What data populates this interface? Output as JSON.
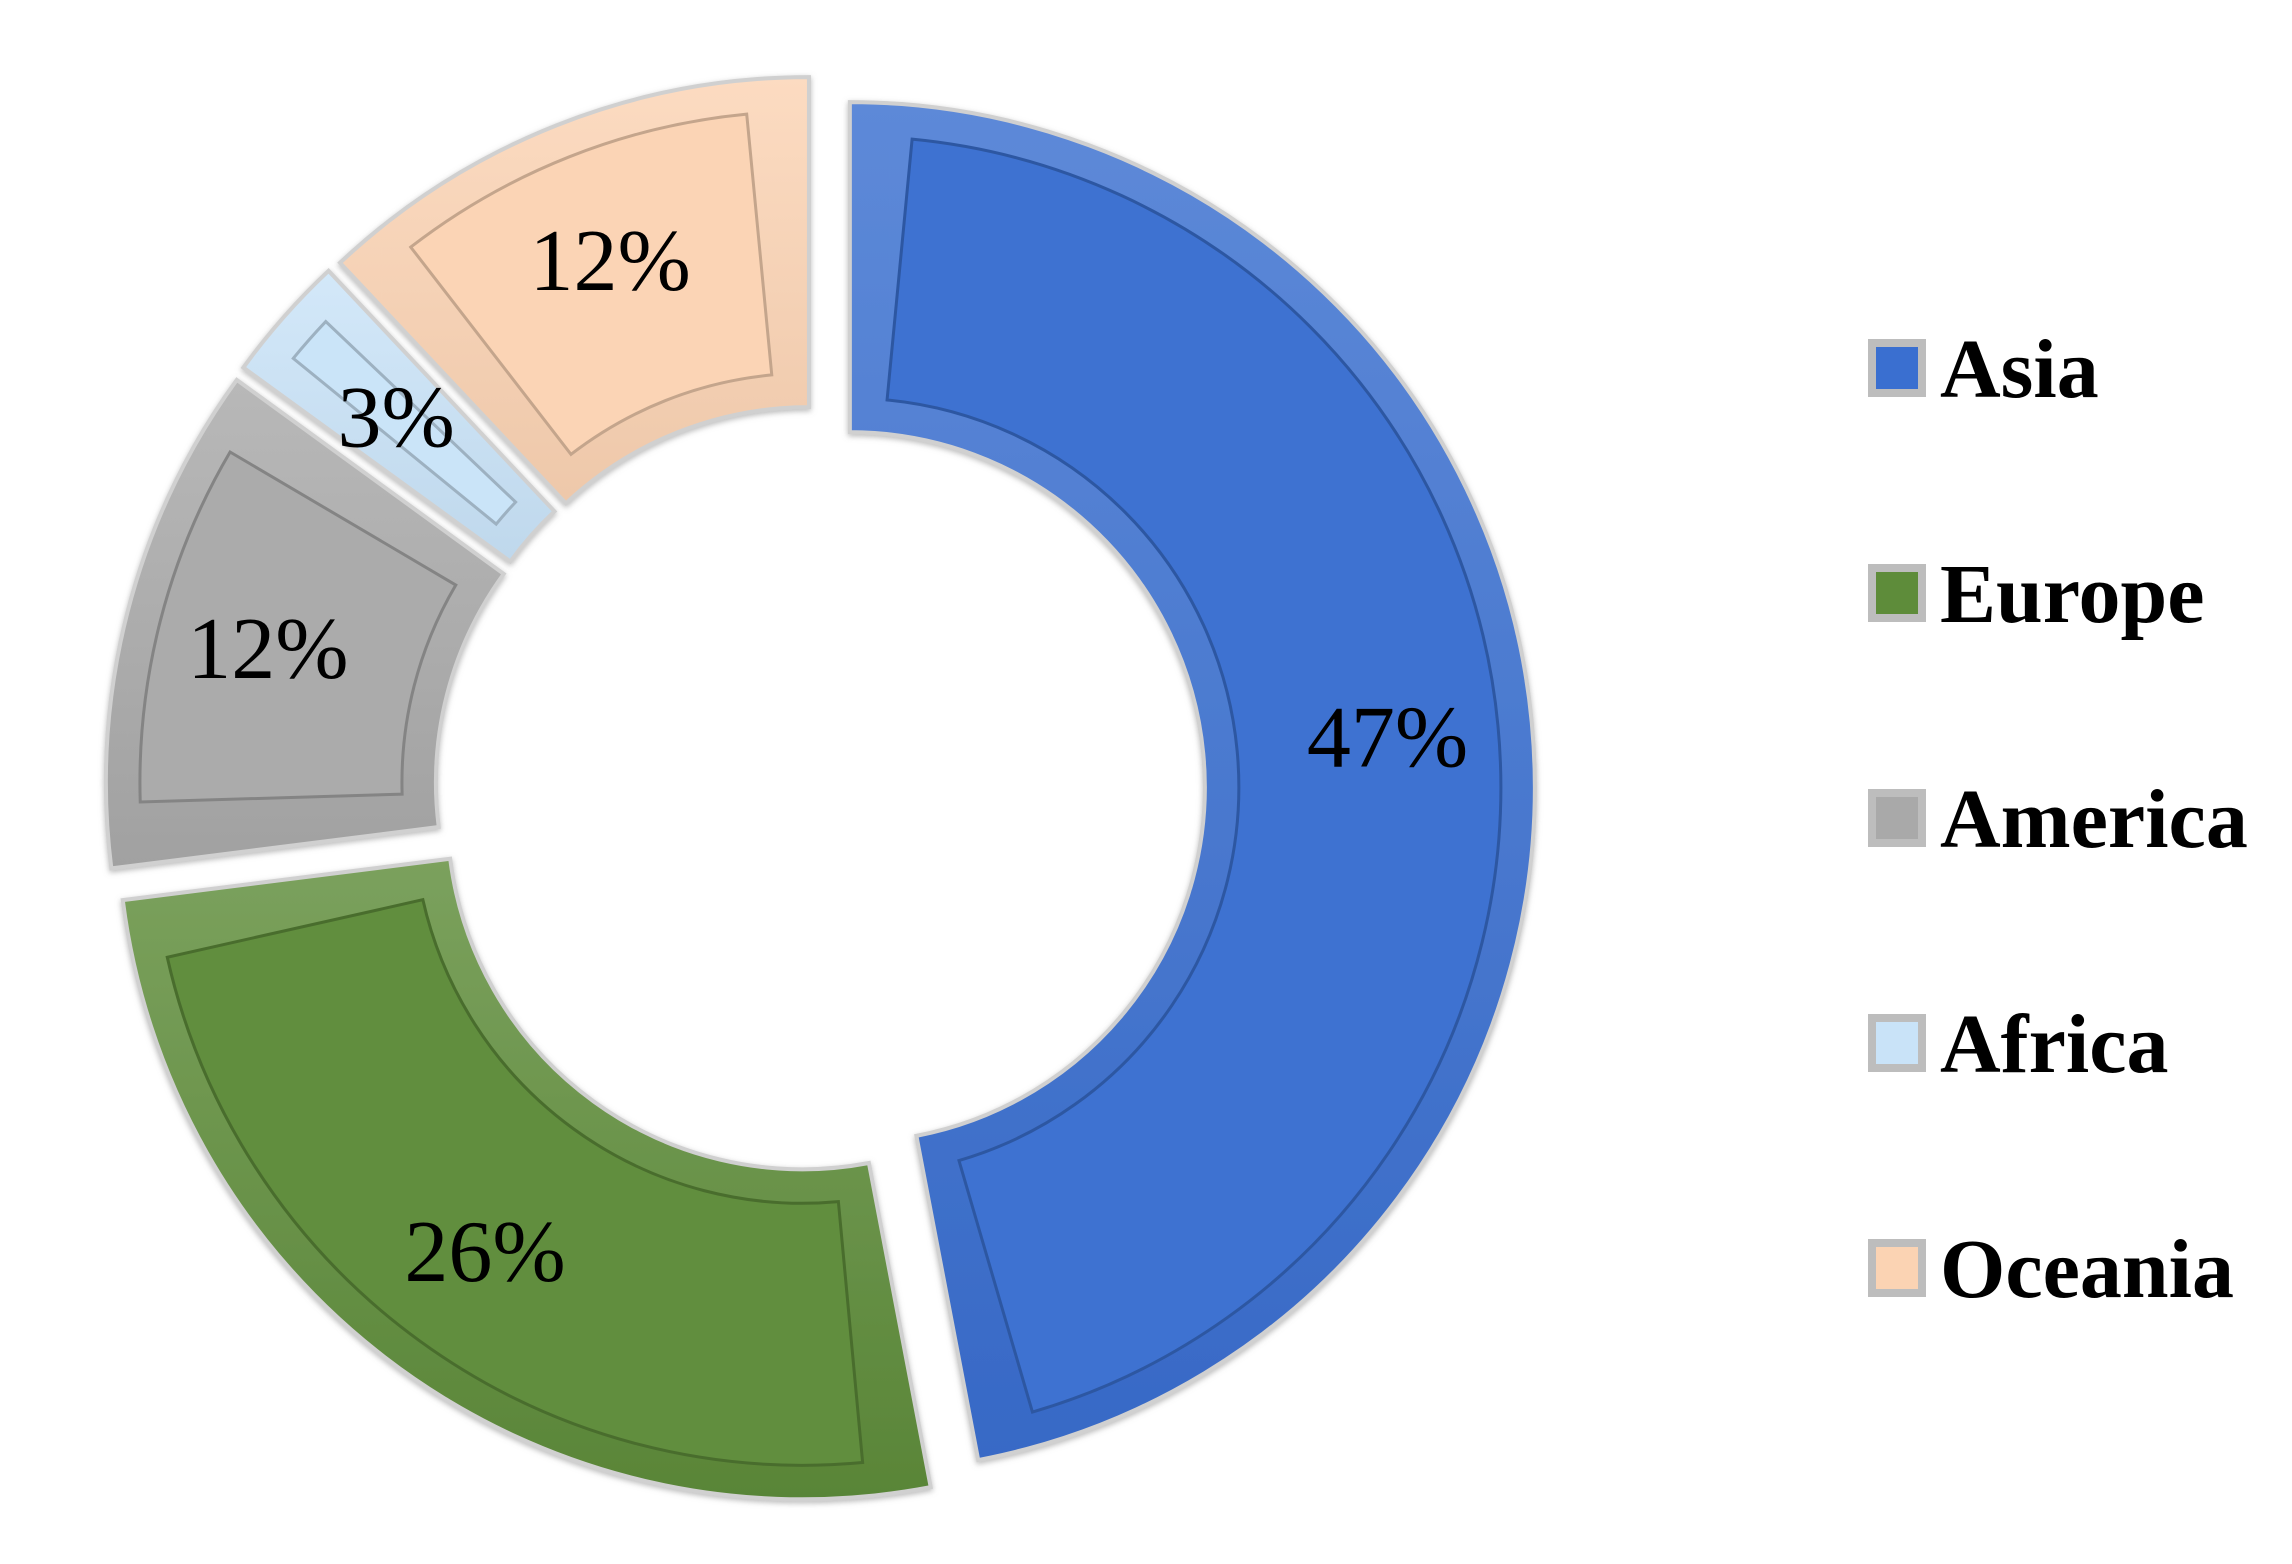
{
  "chart_data": {
    "type": "pie",
    "variant": "donut",
    "series": [
      {
        "name": "Asia",
        "value": 47,
        "label": "47%",
        "color": "#3A6FD0"
      },
      {
        "name": "Europe",
        "value": 26,
        "label": "26%",
        "color": "#5E8C3A"
      },
      {
        "name": "America",
        "value": 12,
        "label": "12%",
        "color": "#A9A9A9"
      },
      {
        "name": "Africa",
        "value": 3,
        "label": "3%",
        "color": "#C9E3F8"
      },
      {
        "name": "Oceania",
        "value": 12,
        "label": "12%",
        "color": "#FBD3B3"
      }
    ],
    "legend_position": "right",
    "exploded": true
  }
}
